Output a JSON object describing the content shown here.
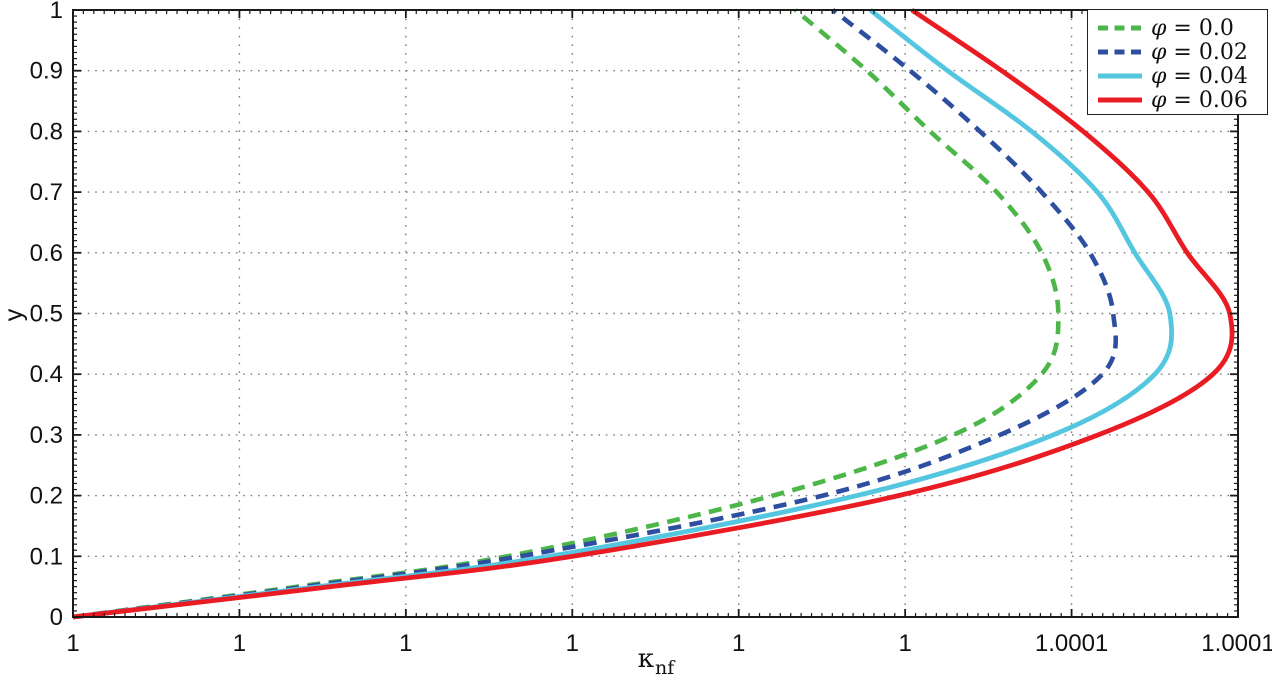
{
  "chart_data": {
    "type": "line",
    "title": "",
    "xlabel": "κ_nf",
    "xlabel_symbol": "κ",
    "xlabel_subscript": "nf",
    "ylabel": "y",
    "xlim": [
      1.0,
      1.00014
    ],
    "ylim": [
      0,
      1
    ],
    "x_tick_values": [
      1.0,
      1.00002,
      1.00004,
      1.00006,
      1.00008,
      1.0001,
      1.00012,
      1.00014
    ],
    "x_tick_labels": [
      "1",
      "1",
      "1",
      "1",
      "1",
      "1",
      "1.0001",
      "1.0001"
    ],
    "y_tick_values": [
      0,
      0.1,
      0.2,
      0.3,
      0.4,
      0.5,
      0.6,
      0.7,
      0.8,
      0.9,
      1
    ],
    "y_tick_labels": [
      "0",
      "0.1",
      "0.2",
      "0.3",
      "0.4",
      "0.5",
      "0.6",
      "0.7",
      "0.8",
      "0.9",
      "1"
    ],
    "grid": true,
    "minor_ticks": true,
    "legend_position": "top-right",
    "phi_symbol": "φ",
    "axis_color": "#1a1a1a",
    "grid_color": "#7d7d7d",
    "tick_label_color": "#111111",
    "series": [
      {
        "name": "φ = 0.0",
        "label_suffix": " = 0.0",
        "color": "#4CB748",
        "style": "dashed",
        "points": [
          [
            0,
            1.0
          ],
          [
            0.05,
            1.000027
          ],
          [
            0.1,
            1.0000522
          ],
          [
            0.2,
            1.0000841
          ],
          [
            0.3,
            1.0001058
          ],
          [
            0.4,
            1.0001164
          ],
          [
            0.5,
            1.0001184
          ],
          [
            0.6,
            1.0001164
          ],
          [
            0.7,
            1.000111
          ],
          [
            0.8,
            1.000103
          ],
          [
            0.9,
            1.0000954
          ],
          [
            1.0,
            1.0000868
          ]
        ]
      },
      {
        "name": "φ = 0.02",
        "label_suffix": " = 0.02",
        "color": "#2E4FA0",
        "style": "dashed",
        "points": [
          [
            0,
            1.0
          ],
          [
            0.05,
            1.000028
          ],
          [
            0.1,
            1.0000537
          ],
          [
            0.2,
            1.0000901
          ],
          [
            0.3,
            1.0001114
          ],
          [
            0.4,
            1.0001237
          ],
          [
            0.5,
            1.000125
          ],
          [
            0.6,
            1.0001222
          ],
          [
            0.7,
            1.0001164
          ],
          [
            0.8,
            1.000109
          ],
          [
            0.9,
            1.0001006
          ],
          [
            1.0,
            1.0000913
          ]
        ]
      },
      {
        "name": "φ = 0.04",
        "label_suffix": " = 0.04",
        "color": "#55C6E0",
        "style": "solid",
        "points": [
          [
            0,
            1.0
          ],
          [
            0.05,
            1.0000295
          ],
          [
            0.1,
            1.0000573
          ],
          [
            0.2,
            1.0000942
          ],
          [
            0.3,
            1.0001178
          ],
          [
            0.4,
            1.00013
          ],
          [
            0.5,
            1.0001318
          ],
          [
            0.6,
            1.0001276
          ],
          [
            0.7,
            1.0001231
          ],
          [
            0.8,
            1.0001152
          ],
          [
            0.9,
            1.0001051
          ],
          [
            1.0,
            1.0000958
          ]
        ]
      },
      {
        "name": "φ = 0.06",
        "label_suffix": " = 0.06",
        "color": "#EA1C23",
        "style": "solid",
        "points": [
          [
            0,
            1.0
          ],
          [
            0.05,
            1.000031
          ],
          [
            0.1,
            1.0000601
          ],
          [
            0.2,
            1.0000992
          ],
          [
            0.3,
            1.0001232
          ],
          [
            0.4,
            1.000137
          ],
          [
            0.5,
            1.000139
          ],
          [
            0.6,
            1.0001339
          ],
          [
            0.7,
            1.0001292
          ],
          [
            0.8,
            1.0001214
          ],
          [
            0.9,
            1.0001116
          ],
          [
            1.0,
            1.0001008
          ]
        ]
      }
    ]
  }
}
